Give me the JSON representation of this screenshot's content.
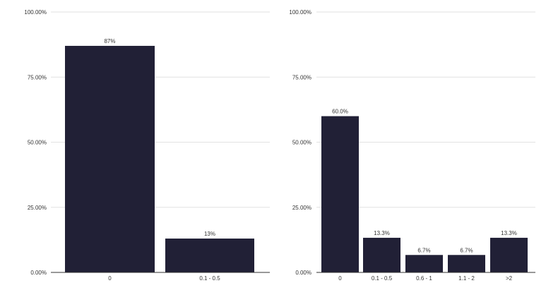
{
  "chart_data": [
    {
      "type": "bar",
      "categories": [
        "0",
        "0.1 -  0.5"
      ],
      "values": [
        87,
        13
      ],
      "data_labels": [
        "87%",
        "13%"
      ],
      "ylim": [
        0,
        100
      ],
      "yticks": [
        "0.00%",
        "25.00%",
        "50.00%",
        "75.00%",
        "100.00%"
      ],
      "grid": true,
      "bar_color": "#212036"
    },
    {
      "type": "bar",
      "categories": [
        "0",
        "0.1 -  0.5",
        "0.6 -  1",
        "1.1 -  2",
        ">2"
      ],
      "values": [
        60.0,
        13.3,
        6.7,
        6.7,
        13.3
      ],
      "data_labels": [
        "60.0%",
        "13.3%",
        "6.7%",
        "6.7%",
        "13.3%"
      ],
      "ylim": [
        0,
        100
      ],
      "yticks": [
        "0.00%",
        "25.00%",
        "50.00%",
        "75.00%",
        "100.00%"
      ],
      "grid": true,
      "bar_color": "#212036"
    }
  ]
}
